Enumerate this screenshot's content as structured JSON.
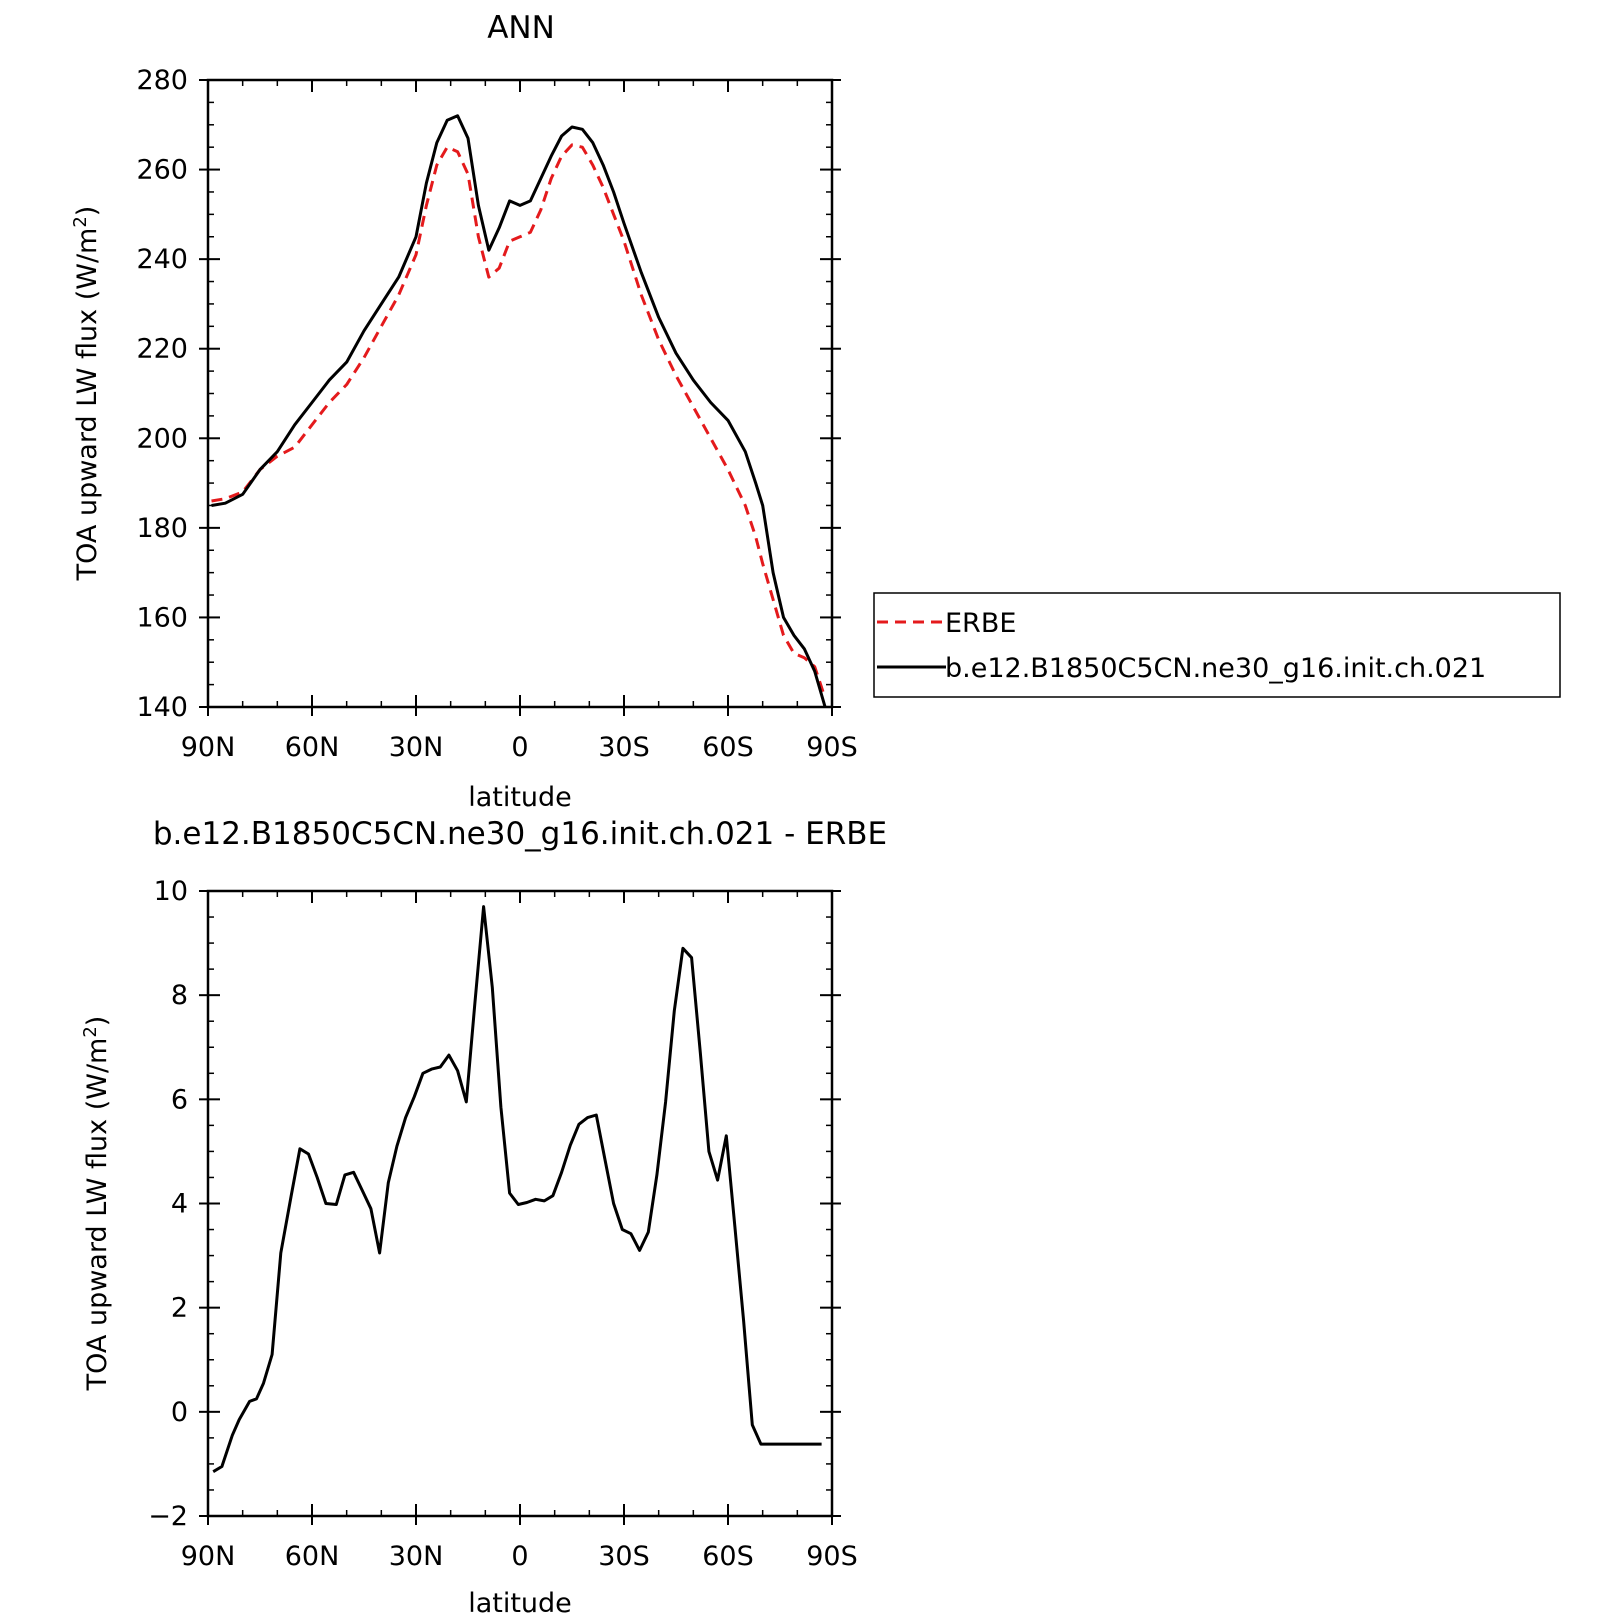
{
  "chart_data": [
    {
      "type": "line",
      "title": "ANN",
      "xlabel": "latitude",
      "ylabel": "TOA upward LW flux (W/m",
      "ylabel_sup": "2",
      "ylabel_end": ")",
      "xlim": [
        90,
        -90
      ],
      "ylim": [
        140,
        280
      ],
      "x_ticks": [
        90,
        60,
        30,
        0,
        -30,
        -60,
        -90
      ],
      "x_tick_labels": [
        "90N",
        "60N",
        "30N",
        "0",
        "30S",
        "60S",
        "90S"
      ],
      "y_ticks": [
        140,
        160,
        180,
        200,
        220,
        240,
        260,
        280
      ],
      "y_tick_labels": [
        "140",
        "160",
        "180",
        "200",
        "220",
        "240",
        "260",
        "280"
      ],
      "grid": false,
      "legend_position": "right",
      "x": [
        89,
        85,
        80,
        75,
        70,
        65,
        60,
        55,
        50,
        45,
        40,
        35,
        30,
        27,
        24,
        21,
        18,
        15,
        12,
        9,
        6,
        3,
        0,
        -3,
        -6,
        -9,
        -12,
        -15,
        -18,
        -21,
        -24,
        -27,
        -30,
        -35,
        -40,
        -45,
        -50,
        -55,
        -60,
        -65,
        -68,
        -70,
        -73,
        -76,
        -79,
        -82,
        -85,
        -88
      ],
      "series": [
        {
          "name": "ERBE",
          "color": "#e41a1c",
          "dash": "dashed",
          "values": [
            186,
            186.5,
            188,
            193,
            196,
            198,
            203,
            208,
            212,
            218,
            225,
            232,
            241,
            252,
            261,
            265,
            264,
            259,
            245,
            236,
            238,
            244,
            245,
            246,
            251,
            258,
            263,
            265.5,
            265,
            261,
            256,
            250,
            244,
            232,
            222,
            214,
            207,
            200,
            193,
            185,
            178,
            172,
            164,
            156,
            152,
            151,
            149,
            142
          ]
        },
        {
          "name": "b.e12.B1850C5CN.ne30_g16.init.ch.021",
          "color": "#000000",
          "dash": "solid",
          "values": [
            185,
            185.5,
            187.5,
            193,
            197,
            203,
            208,
            213,
            217,
            224,
            230,
            236,
            245,
            257,
            266,
            271,
            272,
            267,
            252,
            242,
            247,
            253,
            252,
            253,
            258,
            263,
            267.5,
            269.5,
            269,
            266,
            261,
            255,
            248,
            237,
            227,
            219,
            213,
            208,
            204,
            197,
            190,
            185,
            170,
            160,
            156,
            153,
            148,
            140
          ]
        }
      ]
    },
    {
      "type": "line",
      "title": "b.e12.B1850C5CN.ne30_g16.init.ch.021 - ERBE",
      "xlabel": "latitude",
      "ylabel": "TOA upward LW flux (W/m",
      "ylabel_sup": "2",
      "ylabel_end": ")",
      "xlim": [
        90,
        -90
      ],
      "ylim": [
        -2,
        10
      ],
      "x_ticks": [
        90,
        60,
        30,
        0,
        -30,
        -60,
        -90
      ],
      "x_tick_labels": [
        "90N",
        "60N",
        "30N",
        "0",
        "30S",
        "60S",
        "90S"
      ],
      "y_ticks": [
        -2,
        0,
        2,
        4,
        6,
        8,
        10
      ],
      "y_tick_labels": [
        "−2",
        "0",
        "2",
        "4",
        "6",
        "8",
        "10"
      ],
      "grid": false,
      "x": [
        88.5,
        86,
        83,
        81,
        78,
        76,
        74,
        71.5,
        69,
        66,
        63.5,
        61,
        58.5,
        56,
        53,
        50.5,
        48,
        45.5,
        43,
        40.5,
        38,
        35.5,
        33,
        30.5,
        28,
        25.5,
        23,
        20.5,
        18,
        15.5,
        13,
        10.5,
        8,
        5.5,
        3,
        0.5,
        -2,
        -4.5,
        -7,
        -9.5,
        -12,
        -14.5,
        -17,
        -19.5,
        -22,
        -24.5,
        -27,
        -29.5,
        -32,
        -34.5,
        -37,
        -39.5,
        -42,
        -44.5,
        -47,
        -49.5,
        -52,
        -54.5,
        -57,
        -59.5,
        -62,
        -64.5,
        -67,
        -69.5,
        -72,
        -74.5,
        -77,
        -79.5,
        -82,
        -84.5,
        -87
      ],
      "series": [
        {
          "name": "",
          "color": "#000000",
          "dash": "solid",
          "values": [
            -1.15,
            -1.05,
            -0.45,
            -0.15,
            0.2,
            0.25,
            0.55,
            1.1,
            3.05,
            4.15,
            5.05,
            4.95,
            4.5,
            4.0,
            3.98,
            4.55,
            4.6,
            4.25,
            3.9,
            3.05,
            4.4,
            5.1,
            5.65,
            6.05,
            6.5,
            6.58,
            6.62,
            6.85,
            6.55,
            5.95,
            7.85,
            9.7,
            8.15,
            5.85,
            4.2,
            3.98,
            4.02,
            4.08,
            4.05,
            4.15,
            4.6,
            5.12,
            5.52,
            5.65,
            5.7,
            4.85,
            4.0,
            3.5,
            3.42,
            3.1,
            3.45,
            4.55,
            5.95,
            7.7,
            8.9,
            8.72,
            6.9,
            5.0,
            4.45,
            5.3,
            3.55,
            1.75,
            -0.25,
            -0.62,
            -0.62,
            -0.62,
            -0.62,
            -0.62,
            -0.62,
            -0.62,
            -0.62
          ]
        }
      ]
    }
  ]
}
